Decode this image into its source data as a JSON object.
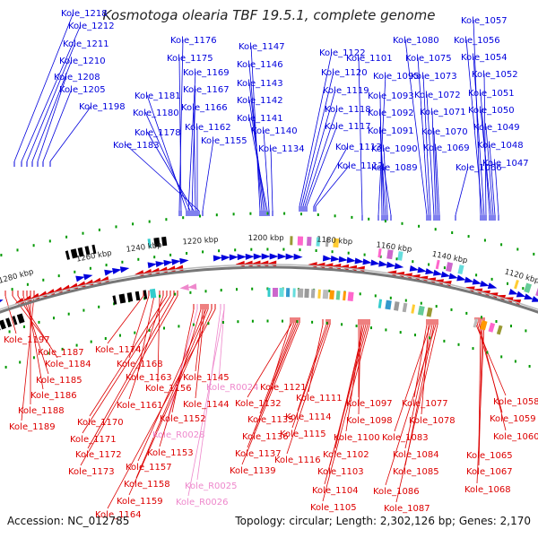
{
  "title": "Kosmotoga olearia TBF 19.5.1, complete genome",
  "accession": "Accession: NC_012785",
  "topology": "Topology: circular; Length: 2,302,126 bp; Genes: 2,170",
  "colors": {
    "forward": "#0000dd",
    "reverse": "#dd0000",
    "rna": "#ee88cc",
    "backbone": "#777777",
    "tick": "#009900"
  },
  "ticks": [
    "1280 kbp",
    "1260 kbp",
    "1240 kbp",
    "1220 kbp",
    "1200 kbp",
    "1180 kbp",
    "1160 kbp",
    "1140 kbp",
    "1120 kbp"
  ],
  "forward_genes": [
    "Kole_1218",
    "Kole_1212",
    "Kole_1211",
    "Kole_1210",
    "Kole_1208",
    "Kole_1205",
    "Kole_1198",
    "Kole_1176",
    "Kole_1175",
    "Kole_1169",
    "Kole_1181",
    "Kole_1167",
    "Kole_1180",
    "Kole_1166",
    "Kole_1178",
    "Kole_1162",
    "Kole_1183",
    "Kole_1155",
    "Kole_1147",
    "Kole_1146",
    "Kole_1143",
    "Kole_1142",
    "Kole_1141",
    "Kole_1140",
    "Kole_1134",
    "Kole_1122",
    "Kole_1120",
    "Kole_1119",
    "Kole_1118",
    "Kole_1117",
    "Kole_1113",
    "Kole_1112",
    "Kole_1101",
    "Kole_1095",
    "Kole_1093",
    "Kole_1092",
    "Kole_1091",
    "Kole_1090",
    "Kole_1089",
    "Kole_1080",
    "Kole_1075",
    "Kole_1073",
    "Kole_1072",
    "Kole_1071",
    "Kole_1070",
    "Kole_1069",
    "Kole_1066",
    "Kole_1057",
    "Kole_1056",
    "Kole_1054",
    "Kole_1052",
    "Kole_1051",
    "Kole_1050",
    "Kole_1049",
    "Kole_1048",
    "Kole_1047"
  ],
  "reverse_genes": [
    "Kole_1197",
    "Kole_1187",
    "Kole_1184",
    "Kole_1185",
    "Kole_1186",
    "Kole_1188",
    "Kole_1189",
    "Kole_1174",
    "Kole_1168",
    "Kole_1163",
    "Kole_1156",
    "Kole_1161",
    "Kole_1170",
    "Kole_1171",
    "Kole_1172",
    "Kole_1173",
    "Kole_1145",
    "Kole_R0024",
    "Kole_1144",
    "Kole_1152",
    "Kole_R0028",
    "Kole_1153",
    "Kole_1157",
    "Kole_1158",
    "Kole_1159",
    "Kole_1164",
    "Kole_R0025",
    "Kole_R0026",
    "Kole_1121",
    "Kole_1132",
    "Kole_1135",
    "Kole_1136",
    "Kole_1137",
    "Kole_1139",
    "Kole_1111",
    "Kole_1114",
    "Kole_1115",
    "Kole_1116",
    "Kole_1097",
    "Kole_1098",
    "Kole_1100",
    "Kole_1102",
    "Kole_1103",
    "Kole_1104",
    "Kole_1105",
    "Kole_1077",
    "Kole_1078",
    "Kole_1083",
    "Kole_1084",
    "Kole_1085",
    "Kole_1086",
    "Kole_1087",
    "Kole_1058",
    "Kole_1059",
    "Kole_1060",
    "Kole_1065",
    "Kole_1067",
    "Kole_1068"
  ]
}
